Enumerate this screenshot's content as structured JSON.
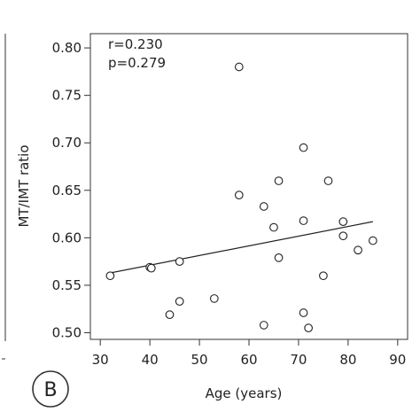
{
  "chart_data": {
    "type": "scatter",
    "title": "",
    "xlabel": "Age (years)",
    "ylabel": "MT/IMT ratio",
    "xlim": [
      28,
      92
    ],
    "ylim": [
      0.493,
      0.815
    ],
    "x_ticks": [
      30,
      40,
      50,
      60,
      70,
      80,
      90
    ],
    "y_ticks": [
      0.5,
      0.55,
      0.6,
      0.65,
      0.7,
      0.75,
      0.8
    ],
    "grid": false,
    "annotations": [
      "r=0.230",
      "p=0.279"
    ],
    "panel_label": "B",
    "points": [
      {
        "x": 32,
        "y": 0.56
      },
      {
        "x": 40,
        "y": 0.569
      },
      {
        "x": 40.3,
        "y": 0.568
      },
      {
        "x": 44,
        "y": 0.519
      },
      {
        "x": 46,
        "y": 0.533
      },
      {
        "x": 46,
        "y": 0.575
      },
      {
        "x": 53,
        "y": 0.536
      },
      {
        "x": 58,
        "y": 0.78
      },
      {
        "x": 58,
        "y": 0.645
      },
      {
        "x": 63,
        "y": 0.633
      },
      {
        "x": 63,
        "y": 0.508
      },
      {
        "x": 65,
        "y": 0.611
      },
      {
        "x": 66,
        "y": 0.66
      },
      {
        "x": 66,
        "y": 0.579
      },
      {
        "x": 71,
        "y": 0.695
      },
      {
        "x": 71,
        "y": 0.618
      },
      {
        "x": 71,
        "y": 0.521
      },
      {
        "x": 72,
        "y": 0.505
      },
      {
        "x": 75,
        "y": 0.56
      },
      {
        "x": 76,
        "y": 0.66
      },
      {
        "x": 79,
        "y": 0.617
      },
      {
        "x": 79,
        "y": 0.602
      },
      {
        "x": 82,
        "y": 0.587
      },
      {
        "x": 85,
        "y": 0.597
      }
    ],
    "trendline": {
      "x": [
        32,
        85
      ],
      "y": [
        0.563,
        0.617
      ]
    }
  }
}
